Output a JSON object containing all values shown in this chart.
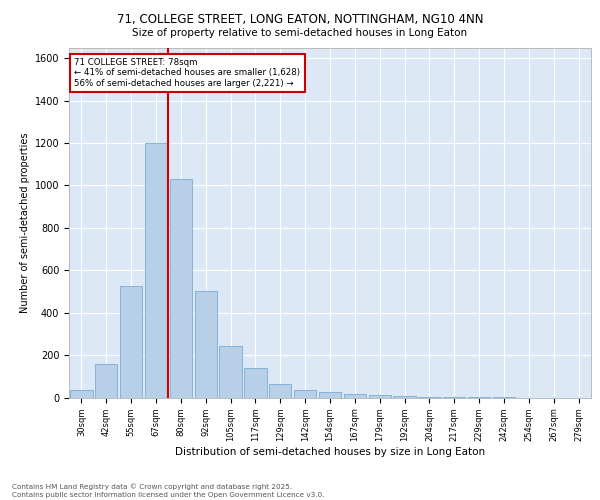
{
  "title_line1": "71, COLLEGE STREET, LONG EATON, NOTTINGHAM, NG10 4NN",
  "title_line2": "Size of property relative to semi-detached houses in Long Eaton",
  "xlabel": "Distribution of semi-detached houses by size in Long Eaton",
  "ylabel": "Number of semi-detached properties",
  "categories": [
    "30sqm",
    "42sqm",
    "55sqm",
    "67sqm",
    "80sqm",
    "92sqm",
    "105sqm",
    "117sqm",
    "129sqm",
    "142sqm",
    "154sqm",
    "167sqm",
    "179sqm",
    "192sqm",
    "204sqm",
    "217sqm",
    "229sqm",
    "242sqm",
    "254sqm",
    "267sqm",
    "279sqm"
  ],
  "values": [
    35,
    160,
    525,
    1200,
    1030,
    500,
    245,
    140,
    65,
    35,
    25,
    15,
    10,
    5,
    3,
    2,
    1,
    1,
    0,
    0,
    0
  ],
  "bar_color": "#b8cfe8",
  "bar_edge_color": "#7aadd4",
  "bg_color": "#dce8f5",
  "grid_color": "#ffffff",
  "property_label": "71 COLLEGE STREET: 78sqm",
  "pct_smaller": 41,
  "count_smaller": 1628,
  "pct_larger": 56,
  "count_larger": 2221,
  "vline_bin_index": 4,
  "vline_color": "#cc0000",
  "annotation_box_color": "#cc0000",
  "ylim": [
    0,
    1650
  ],
  "yticks": [
    0,
    200,
    400,
    600,
    800,
    1000,
    1200,
    1400,
    1600
  ],
  "footnote1": "Contains HM Land Registry data © Crown copyright and database right 2025.",
  "footnote2": "Contains public sector information licensed under the Open Government Licence v3.0."
}
